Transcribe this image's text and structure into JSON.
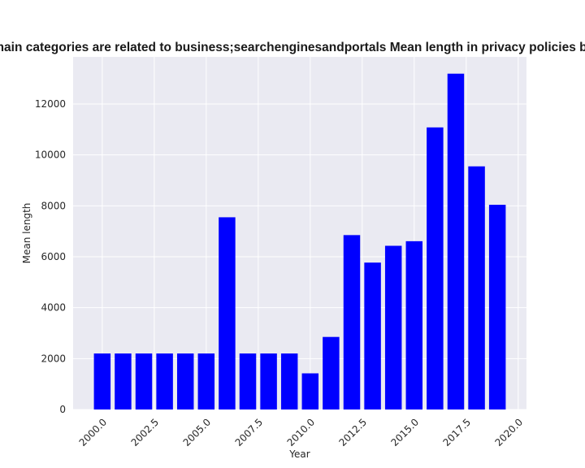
{
  "chart_data": {
    "type": "bar",
    "title": "Domain categories are related to business;searchenginesandportals Mean length in privacy policies by year",
    "xlabel": "Year",
    "ylabel": "Mean length",
    "x": [
      2000,
      2001,
      2002,
      2003,
      2004,
      2005,
      2006,
      2007,
      2008,
      2009,
      2010,
      2011,
      2012,
      2013,
      2014,
      2015,
      2016,
      2017,
      2018,
      2019
    ],
    "values": [
      2200,
      2200,
      2200,
      2200,
      2200,
      2200,
      7550,
      2200,
      2200,
      2200,
      1420,
      2850,
      6850,
      5770,
      6430,
      6610,
      11080,
      13190,
      9550,
      8040
    ],
    "xlim": [
      1998.6,
      2020.4
    ],
    "ylim": [
      0,
      13850
    ],
    "x_ticks": [
      "2000.0",
      "2002.5",
      "2005.0",
      "2007.5",
      "2010.0",
      "2012.5",
      "2015.0",
      "2017.5",
      "2020.0"
    ],
    "x_tick_values": [
      2000,
      2002.5,
      2005,
      2007.5,
      2010,
      2012.5,
      2015,
      2017.5,
      2020
    ],
    "y_ticks": [
      "0",
      "2000",
      "4000",
      "6000",
      "8000",
      "10000",
      "12000"
    ],
    "y_tick_values": [
      0,
      2000,
      4000,
      6000,
      8000,
      10000,
      12000
    ],
    "bar_color": "#0000ff",
    "background_color": "#eaeaf2",
    "grid_color": "#ffffff",
    "grid": true,
    "legend": false
  }
}
